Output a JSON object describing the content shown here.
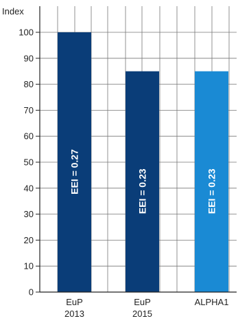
{
  "chart_data": {
    "type": "bar",
    "ylabel": "Index",
    "ylim": [
      0,
      100
    ],
    "yticks": [
      0,
      10,
      20,
      30,
      40,
      50,
      60,
      70,
      80,
      90,
      100
    ],
    "categories": [
      [
        "EuP",
        "2013"
      ],
      [
        "EuP",
        "2015"
      ],
      [
        "ALPHA1"
      ]
    ],
    "values": [
      100,
      85,
      85
    ],
    "bar_labels": [
      "EEI = 0.27",
      "EEI = 0.23",
      "EEI = 0.23"
    ],
    "bar_colors": [
      "#0a3d78",
      "#0a3d78",
      "#1a8ad4"
    ],
    "grid": true,
    "gridline_color": "#777777"
  }
}
